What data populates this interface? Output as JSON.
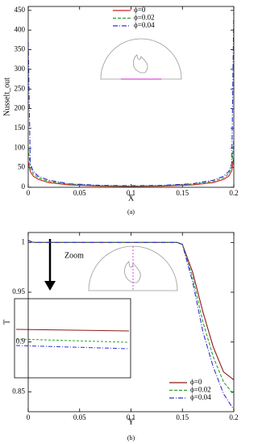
{
  "chart_data": [
    {
      "type": "line",
      "ylabel": "Nusselt_out",
      "xlabel": "X",
      "caption": "(a)",
      "x": [
        0,
        0.002,
        0.005,
        0.01,
        0.02,
        0.04,
        0.07,
        0.1,
        0.13,
        0.16,
        0.18,
        0.19,
        0.195,
        0.198,
        0.2
      ],
      "series": [
        {
          "name": "ϕ=0",
          "color": "#d62020",
          "line_style": "solid",
          "values": [
            65,
            40,
            28,
            20,
            12,
            6,
            3,
            2,
            3,
            6,
            12,
            20,
            28,
            42,
            75
          ]
        },
        {
          "name": "ϕ=0.02",
          "color": "#2ca02c",
          "line_style": "dashed",
          "values": [
            100,
            50,
            34,
            24,
            15,
            8,
            4,
            3,
            4,
            8,
            15,
            24,
            34,
            52,
            120
          ]
        },
        {
          "name": "ϕ=0.04",
          "color": "#3030d0",
          "line_style": "dashdot",
          "values": [
            370,
            60,
            40,
            28,
            18,
            9,
            5,
            4,
            5,
            9,
            18,
            28,
            40,
            60,
            445
          ]
        }
      ],
      "xlim": [
        0,
        0.2
      ],
      "xticks": [
        0,
        0.05,
        0.1,
        0.15,
        0.2
      ],
      "ylim": [
        0,
        460
      ],
      "yticks": [
        0,
        50,
        100,
        150,
        200,
        250,
        300,
        350,
        400,
        450
      ],
      "legend_position": "upper center"
    },
    {
      "type": "line",
      "ylabel": "T",
      "xlabel": "Y",
      "caption": "(b)",
      "annotation": "Zoom",
      "x": [
        0,
        0.005,
        0.1,
        0.145,
        0.15,
        0.16,
        0.17,
        0.18,
        0.19,
        0.2
      ],
      "series": [
        {
          "name": "ϕ=0",
          "color": "#8b1a1a",
          "line_style": "solid",
          "values": [
            1.002,
            1,
            1,
            1,
            0.998,
            0.97,
            0.93,
            0.895,
            0.87,
            0.862
          ]
        },
        {
          "name": "ϕ=0.02",
          "color": "#2ca02c",
          "line_style": "dashed",
          "values": [
            1.002,
            1,
            1,
            1,
            0.998,
            0.965,
            0.92,
            0.885,
            0.86,
            0.847
          ]
        },
        {
          "name": "ϕ=0.04",
          "color": "#3030d0",
          "line_style": "dashdot",
          "values": [
            1.002,
            1,
            1,
            1,
            0.998,
            0.96,
            0.91,
            0.875,
            0.848,
            0.832
          ]
        }
      ],
      "xlim": [
        0,
        0.2
      ],
      "xticks": [
        0,
        0.05,
        0.1,
        0.15,
        0.2
      ],
      "ylim": [
        0.83,
        1.01
      ],
      "yticks": [
        0.85,
        0.9,
        0.95,
        1
      ],
      "legend_position": "lower right"
    }
  ]
}
